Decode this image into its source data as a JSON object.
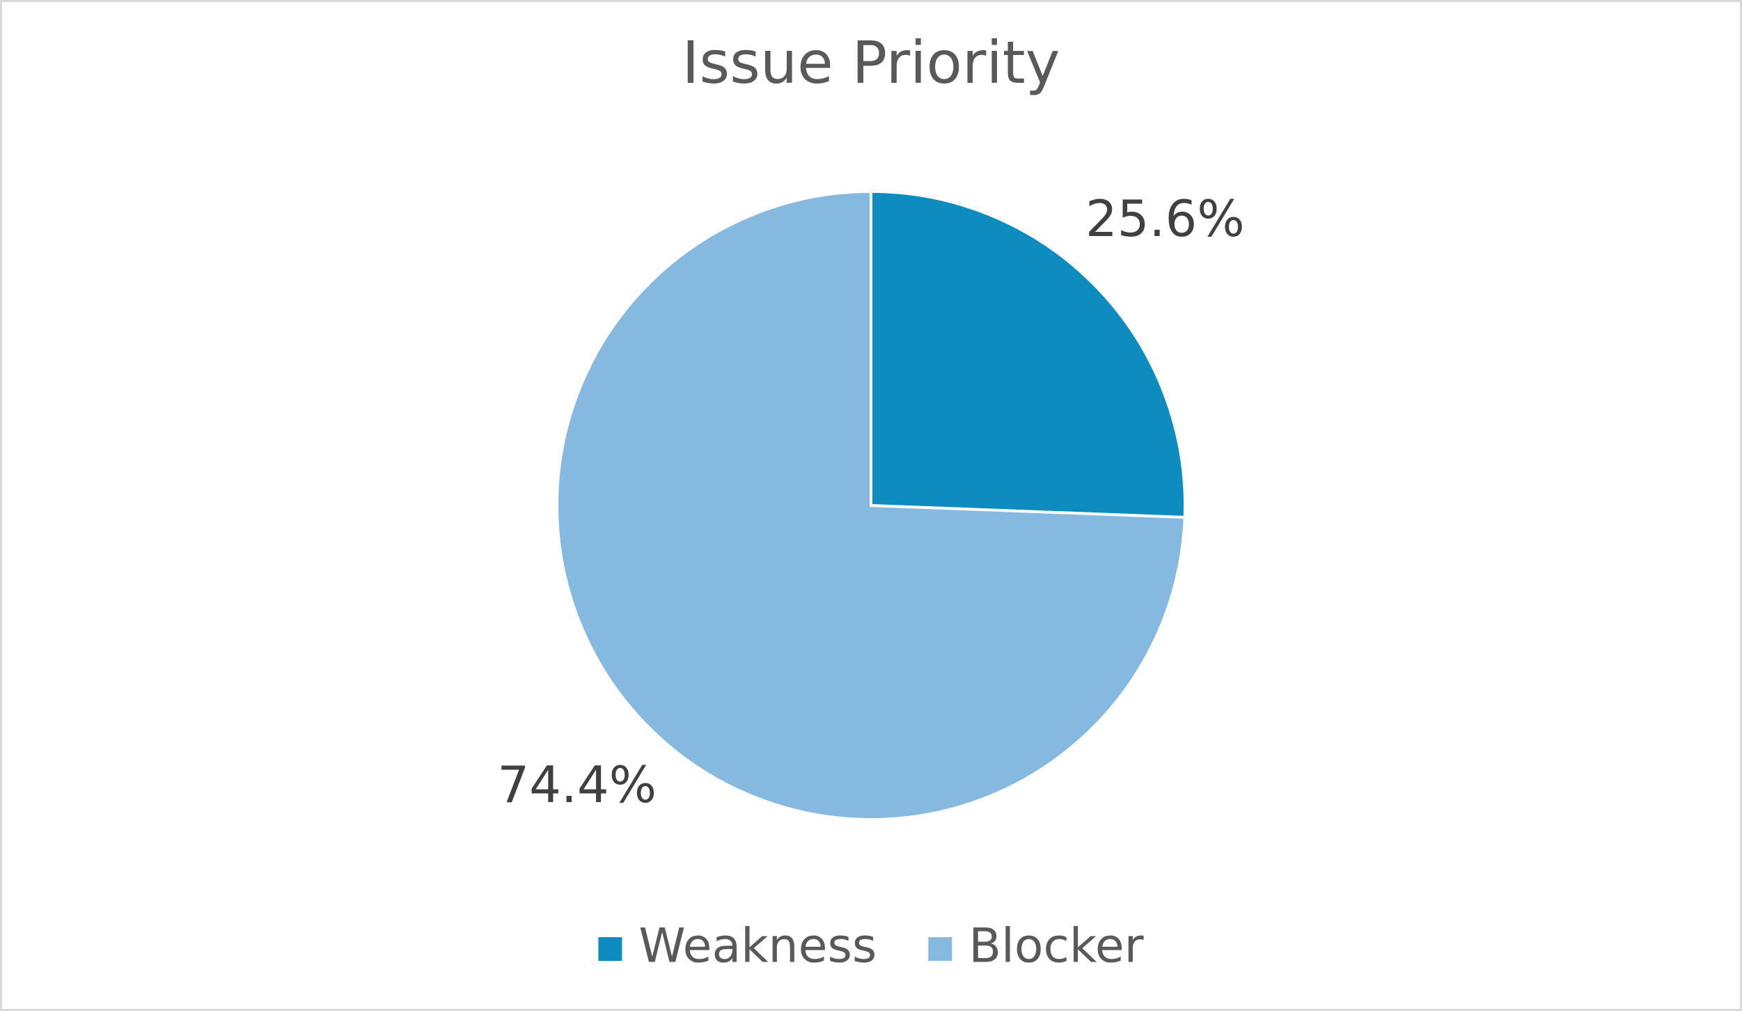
{
  "chart_data": {
    "type": "pie",
    "title": "Issue Priority",
    "categories": [
      "Weakness",
      "Blocker"
    ],
    "values": [
      25.6,
      74.4
    ],
    "value_labels": [
      "25.6%",
      "74.4%"
    ],
    "colors": [
      "#0e8bbf",
      "#86b9e0"
    ],
    "legend": "bottom"
  }
}
